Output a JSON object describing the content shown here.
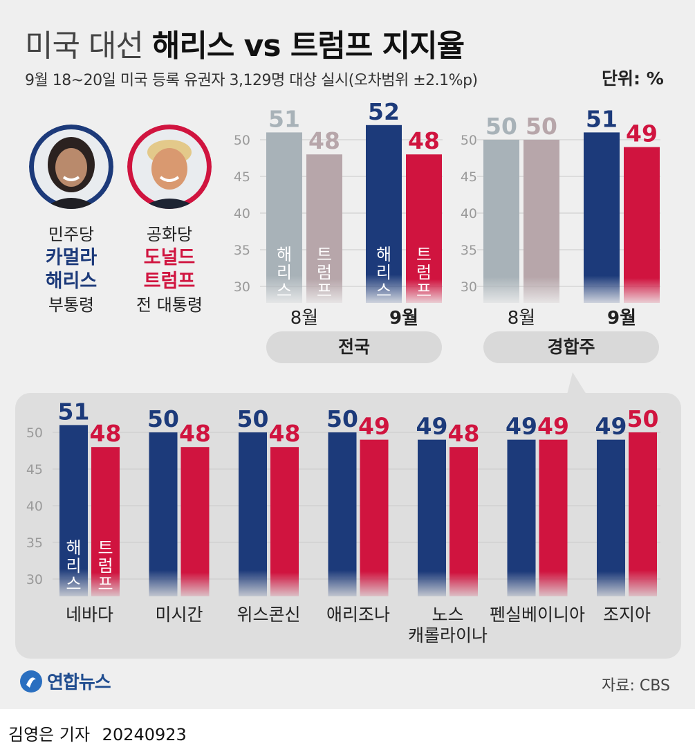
{
  "title": {
    "light": "미국 대선",
    "bold": "해리스 vs 트럼프 지지율"
  },
  "subtitle": "9월 18~20일 미국 등록 유권자 3,129명 대상 실시(오차범위 ±2.1%p)",
  "unit": "단위: %",
  "candidates": [
    {
      "party": "민주당",
      "name_line1": "카멀라",
      "name_line2": "해리스",
      "role": "부통령",
      "color": "#1c3a7a"
    },
    {
      "party": "공화당",
      "name_line1": "도널드",
      "name_line2": "트럼프",
      "role": "전 대통령",
      "color": "#d0143f"
    }
  ],
  "series_names": [
    "해리스",
    "트럼프"
  ],
  "colors": {
    "harris": "#1c3a7a",
    "trump": "#d0143f",
    "harris_past": "#a8b2b8",
    "trump_past": "#b7a6aa"
  },
  "chart_data": [
    {
      "type": "bar",
      "group_label": "전국",
      "categories": [
        "8월",
        "9월"
      ],
      "series": [
        {
          "name": "해리스",
          "values": [
            51,
            52
          ]
        },
        {
          "name": "트럼프",
          "values": [
            48,
            48
          ]
        }
      ],
      "ylim": [
        30,
        50
      ],
      "yticks": [
        30,
        35,
        40,
        45,
        50
      ]
    },
    {
      "type": "bar",
      "group_label": "경합주",
      "categories": [
        "8월",
        "9월"
      ],
      "series": [
        {
          "name": "해리스",
          "values": [
            50,
            51
          ]
        },
        {
          "name": "트럼프",
          "values": [
            50,
            49
          ]
        }
      ],
      "ylim": [
        30,
        50
      ],
      "yticks": [
        30,
        35,
        40,
        45,
        50
      ]
    },
    {
      "type": "bar",
      "categories": [
        "네바다",
        "미시간",
        "위스콘신",
        "애리조나",
        "노스\n캐롤라이나",
        "펜실베이니아",
        "조지아"
      ],
      "series": [
        {
          "name": "해리스",
          "values": [
            51,
            50,
            50,
            50,
            49,
            49,
            49
          ]
        },
        {
          "name": "트럼프",
          "values": [
            48,
            48,
            48,
            49,
            48,
            49,
            50
          ]
        }
      ],
      "ylim": [
        30,
        50
      ],
      "yticks": [
        30,
        35,
        40,
        45,
        50
      ]
    }
  ],
  "logo_text": "연합뉴스",
  "source": "자료: CBS",
  "byline": {
    "reporter": "김영은 기자",
    "date": "20240923"
  }
}
